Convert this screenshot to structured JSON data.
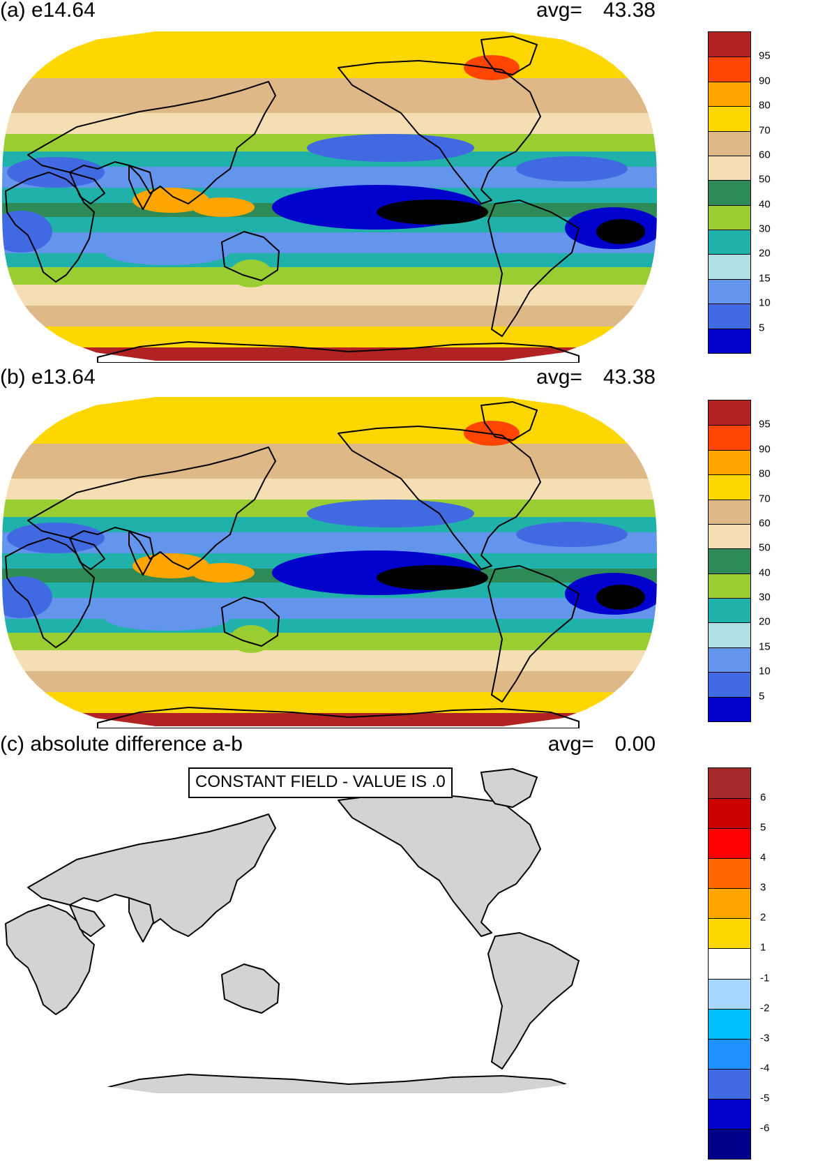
{
  "panels": [
    {
      "title": "(a) e14.64",
      "avg_label": "avg=",
      "avg_value": "43.38"
    },
    {
      "title": "(b) e13.64",
      "avg_label": "avg=",
      "avg_value": "43.38"
    },
    {
      "title": "(c) absolute difference a-b",
      "avg_label": "avg=",
      "avg_value": "0.00",
      "message": "CONSTANT FIELD - VALUE IS .0"
    }
  ],
  "legend_main": {
    "colors": [
      "#b22222",
      "#ff4500",
      "#ffa500",
      "#ffd700",
      "#deb887",
      "#f5deb3",
      "#2e8b57",
      "#9acd32",
      "#20b2aa",
      "#b0e0e6",
      "#6495ed",
      "#4169e1",
      "#0000cd"
    ],
    "labels": [
      "95",
      "90",
      "80",
      "70",
      "60",
      "50",
      "40",
      "30",
      "20",
      "15",
      "10",
      "5"
    ]
  },
  "legend_diff": {
    "colors": [
      "#a52a2a",
      "#cd0000",
      "#ff0000",
      "#ff6600",
      "#ffa500",
      "#ffd700",
      "#ffffff",
      "#a6d8ff",
      "#00bfff",
      "#1e90ff",
      "#4169e1",
      "#0000cd",
      "#00008b"
    ],
    "labels": [
      "6",
      "5",
      "4",
      "3",
      "2",
      "1",
      "-1",
      "-2",
      "-3",
      "-4",
      "-5",
      "-6"
    ]
  },
  "map_colors": {
    "land_gray": "#d3d3d3",
    "coast": "#000000"
  }
}
